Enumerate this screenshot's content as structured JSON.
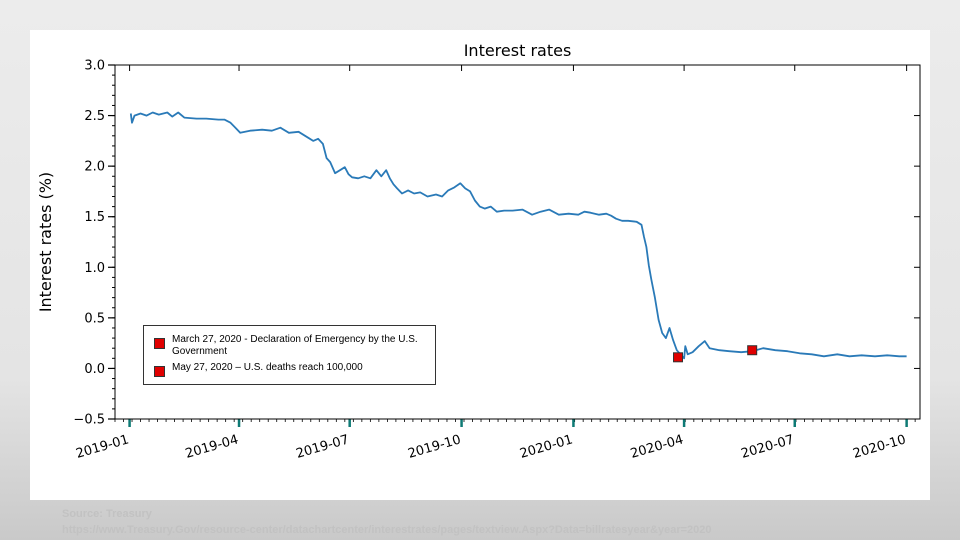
{
  "chart_data": {
    "type": "line",
    "title": "Interest rates",
    "xlabel": "",
    "ylabel": "Interest rates (%)",
    "ylim": [
      -0.5,
      3.0
    ],
    "xlim": [
      "2018-12-20",
      "2020-10-12"
    ],
    "yticks": [
      "3.0",
      "2.5",
      "2.0",
      "1.5",
      "1.0",
      "0.5",
      "0.0",
      "−0.5"
    ],
    "xticks": [
      "2019-01",
      "2019-04",
      "2019-07",
      "2019-10",
      "2020-01",
      "2020-04",
      "2020-07",
      "2020-10"
    ],
    "grid": false,
    "legend_position": "lower-left",
    "line_color": "#2a7ab8",
    "marker_color": "#e00000",
    "series": [
      {
        "points": [
          [
            "2019-01-02",
            2.52
          ],
          [
            "2019-01-03",
            2.43
          ],
          [
            "2019-01-05",
            2.5
          ],
          [
            "2019-01-10",
            2.52
          ],
          [
            "2019-01-15",
            2.5
          ],
          [
            "2019-01-20",
            2.53
          ],
          [
            "2019-01-25",
            2.51
          ],
          [
            "2019-02-01",
            2.53
          ],
          [
            "2019-02-05",
            2.49
          ],
          [
            "2019-02-10",
            2.53
          ],
          [
            "2019-02-15",
            2.48
          ],
          [
            "2019-02-25",
            2.47
          ],
          [
            "2019-03-05",
            2.47
          ],
          [
            "2019-03-15",
            2.46
          ],
          [
            "2019-03-20",
            2.46
          ],
          [
            "2019-03-25",
            2.43
          ],
          [
            "2019-03-29",
            2.38
          ],
          [
            "2019-04-02",
            2.33
          ],
          [
            "2019-04-10",
            2.35
          ],
          [
            "2019-04-20",
            2.36
          ],
          [
            "2019-04-28",
            2.35
          ],
          [
            "2019-05-05",
            2.38
          ],
          [
            "2019-05-12",
            2.33
          ],
          [
            "2019-05-20",
            2.34
          ],
          [
            "2019-05-28",
            2.28
          ],
          [
            "2019-06-01",
            2.25
          ],
          [
            "2019-06-05",
            2.27
          ],
          [
            "2019-06-09",
            2.22
          ],
          [
            "2019-06-12",
            2.08
          ],
          [
            "2019-06-15",
            2.04
          ],
          [
            "2019-06-19",
            1.93
          ],
          [
            "2019-06-23",
            1.96
          ],
          [
            "2019-06-27",
            1.99
          ],
          [
            "2019-06-30",
            1.92
          ],
          [
            "2019-07-03",
            1.89
          ],
          [
            "2019-07-08",
            1.88
          ],
          [
            "2019-07-13",
            1.9
          ],
          [
            "2019-07-18",
            1.88
          ],
          [
            "2019-07-23",
            1.96
          ],
          [
            "2019-07-27",
            1.9
          ],
          [
            "2019-07-31",
            1.96
          ],
          [
            "2019-08-03",
            1.88
          ],
          [
            "2019-08-06",
            1.82
          ],
          [
            "2019-08-09",
            1.78
          ],
          [
            "2019-08-13",
            1.73
          ],
          [
            "2019-08-18",
            1.76
          ],
          [
            "2019-08-23",
            1.73
          ],
          [
            "2019-08-28",
            1.74
          ],
          [
            "2019-09-03",
            1.7
          ],
          [
            "2019-09-10",
            1.72
          ],
          [
            "2019-09-15",
            1.7
          ],
          [
            "2019-09-20",
            1.76
          ],
          [
            "2019-09-25",
            1.79
          ],
          [
            "2019-09-30",
            1.83
          ],
          [
            "2019-10-04",
            1.78
          ],
          [
            "2019-10-08",
            1.75
          ],
          [
            "2019-10-12",
            1.66
          ],
          [
            "2019-10-16",
            1.6
          ],
          [
            "2019-10-20",
            1.58
          ],
          [
            "2019-10-25",
            1.6
          ],
          [
            "2019-10-30",
            1.55
          ],
          [
            "2019-11-05",
            1.56
          ],
          [
            "2019-11-12",
            1.56
          ],
          [
            "2019-11-20",
            1.57
          ],
          [
            "2019-11-28",
            1.52
          ],
          [
            "2019-12-05",
            1.55
          ],
          [
            "2019-12-12",
            1.57
          ],
          [
            "2019-12-20",
            1.52
          ],
          [
            "2019-12-28",
            1.53
          ],
          [
            "2020-01-05",
            1.52
          ],
          [
            "2020-01-10",
            1.55
          ],
          [
            "2020-01-15",
            1.54
          ],
          [
            "2020-01-22",
            1.52
          ],
          [
            "2020-01-28",
            1.53
          ],
          [
            "2020-02-01",
            1.51
          ],
          [
            "2020-02-05",
            1.48
          ],
          [
            "2020-02-10",
            1.46
          ],
          [
            "2020-02-15",
            1.46
          ],
          [
            "2020-02-22",
            1.45
          ],
          [
            "2020-02-26",
            1.42
          ],
          [
            "2020-02-28",
            1.3
          ],
          [
            "2020-03-01",
            1.2
          ],
          [
            "2020-03-03",
            1.02
          ],
          [
            "2020-03-05",
            0.88
          ],
          [
            "2020-03-08",
            0.7
          ],
          [
            "2020-03-11",
            0.48
          ],
          [
            "2020-03-14",
            0.35
          ],
          [
            "2020-03-17",
            0.3
          ],
          [
            "2020-03-20",
            0.4
          ],
          [
            "2020-03-23",
            0.28
          ],
          [
            "2020-03-26",
            0.18
          ],
          [
            "2020-03-29",
            0.14
          ],
          [
            "2020-04-01",
            0.1
          ],
          [
            "2020-04-02",
            0.22
          ],
          [
            "2020-04-04",
            0.14
          ],
          [
            "2020-04-08",
            0.16
          ],
          [
            "2020-04-13",
            0.22
          ],
          [
            "2020-04-18",
            0.27
          ],
          [
            "2020-04-22",
            0.2
          ],
          [
            "2020-04-30",
            0.18
          ],
          [
            "2020-05-08",
            0.17
          ],
          [
            "2020-05-18",
            0.16
          ],
          [
            "2020-05-27",
            0.17
          ],
          [
            "2020-06-05",
            0.2
          ],
          [
            "2020-06-15",
            0.18
          ],
          [
            "2020-06-25",
            0.17
          ],
          [
            "2020-07-05",
            0.15
          ],
          [
            "2020-07-15",
            0.14
          ],
          [
            "2020-07-25",
            0.12
          ],
          [
            "2020-08-05",
            0.14
          ],
          [
            "2020-08-15",
            0.12
          ],
          [
            "2020-08-25",
            0.13
          ],
          [
            "2020-09-05",
            0.12
          ],
          [
            "2020-09-15",
            0.13
          ],
          [
            "2020-09-25",
            0.12
          ],
          [
            "2020-10-01",
            0.12
          ]
        ]
      }
    ],
    "annotations": [
      {
        "date": "2020-03-27",
        "value": 0.11,
        "label": "March 27, 2020 - Declaration of Emergency by the U.S. Government"
      },
      {
        "date": "2020-05-27",
        "value": 0.18,
        "label": "May 27, 2020 – U.S. deaths reach 100,000"
      }
    ]
  },
  "source": {
    "label": "Source: Treasury",
    "url": "https://www.Treasury.Gov/resource-center/datachartcenter/interestrates/pages/textview.Aspx?Data=billratesyear&year=2020"
  }
}
